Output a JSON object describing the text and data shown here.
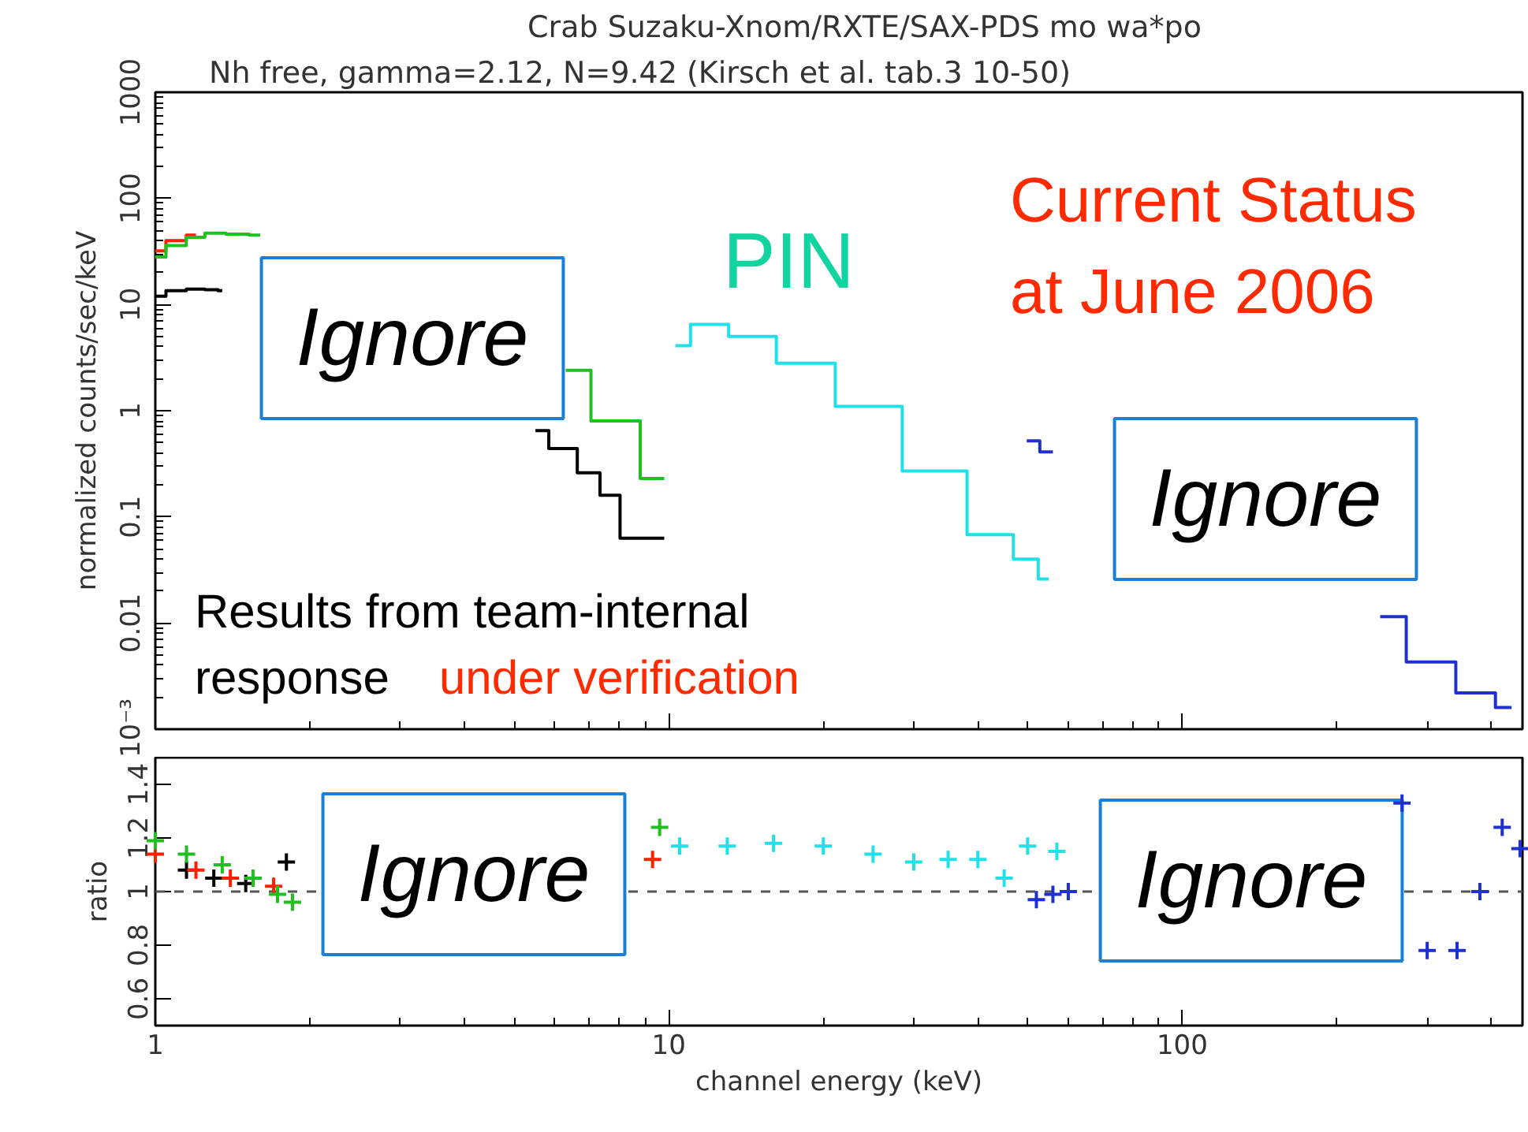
{
  "chart_data": [
    {
      "type": "step",
      "title": "Crab Suzaku-Xnom/RXTE/SAX-PDS mo wa*po",
      "subtitle": "Nh free,  gamma=2.12,  N=9.42  (Kirsch et al. tab.3 10-50)",
      "ylabel": "normalized counts/sec/keV",
      "log": "xy",
      "xlim": [
        1,
        460
      ],
      "xticks": [
        1,
        10,
        100
      ],
      "ylim": [
        0.001,
        1000
      ],
      "yticks": [
        {
          "value": 0.001,
          "label": "10⁻³"
        },
        0.01,
        0.1,
        1,
        10,
        100,
        1000
      ],
      "tick_labels": "y",
      "annotations": [
        "PIN",
        "Current Status",
        "at June 2006",
        "Results from team-internal",
        "response",
        "under verification",
        "Ignore",
        "Ignore"
      ],
      "series": [
        {
          "color": "#000000",
          "x": [
            1,
            1.1,
            1.2,
            1.3,
            1.35,
            null,
            5.5,
            6.2,
            7.1,
            7.6,
            8.5,
            9.8
          ],
          "values": [
            12,
            13.5,
            14,
            13.8,
            13.5,
            null,
            0.65,
            0.44,
            0.26,
            0.16,
            0.063,
            0.063
          ]
        },
        {
          "color": "#ff2000",
          "x": [
            1,
            1.1,
            1.2
          ],
          "values": [
            32,
            40,
            45
          ]
        },
        {
          "color": "#20c020",
          "x": [
            1,
            1.1,
            1.2,
            1.3,
            1.45,
            1.6,
            null,
            6.3,
            7.9,
            9.8
          ],
          "values": [
            28,
            36,
            43,
            47,
            46,
            45,
            null,
            2.4,
            0.8,
            0.23
          ]
        },
        {
          "color": "#20e0e8",
          "x": [
            10.3,
            11.8,
            14.5,
            18.1,
            24.6,
            33,
            44,
            50,
            55
          ],
          "values": [
            4.1,
            6.5,
            5,
            2.8,
            1.1,
            0.27,
            0.068,
            0.04,
            0.026
          ]
        },
        {
          "color": "#2030d0",
          "x": [
            49.8,
            56,
            null,
            243,
            307,
            379,
            438
          ],
          "values": [
            0.52,
            0.41,
            null,
            0.0115,
            0.0043,
            0.0022,
            0.0016
          ]
        }
      ]
    },
    {
      "type": "scatter",
      "marker": "cross",
      "xlabel": "channel energy (keV)",
      "ylabel": "ratio",
      "log": "x",
      "xlim": [
        1,
        460
      ],
      "xticks": [
        1,
        10,
        100
      ],
      "ylim": [
        0.5,
        1.5
      ],
      "yticks": [
        0.6,
        0.8,
        1,
        1.2,
        1.4
      ],
      "ref_lines": [
        {
          "axis": "y",
          "value": 1,
          "color": "#555555",
          "line_style": "dashed"
        }
      ],
      "annotations": [
        "Ignore",
        "Ignore"
      ],
      "series": [
        {
          "color": "#000000",
          "x": [
            1.15,
            1.3,
            1.5,
            1.8
          ],
          "values": [
            1.08,
            1.05,
            1.03,
            1.11
          ]
        },
        {
          "color": "#ff2000",
          "x": [
            1,
            1.2,
            1.4,
            1.7,
            9.3
          ],
          "values": [
            1.14,
            1.08,
            1.05,
            1.02,
            1.12
          ]
        },
        {
          "color": "#20c020",
          "x": [
            1,
            1.15,
            1.35,
            1.55,
            1.73,
            1.85,
            9.6
          ],
          "values": [
            1.19,
            1.14,
            1.1,
            1.05,
            0.99,
            0.96,
            1.24
          ]
        },
        {
          "color": "#20e0e8",
          "x": [
            10.5,
            13,
            16,
            20,
            25,
            30,
            35,
            40,
            45,
            50,
            57
          ],
          "values": [
            1.17,
            1.17,
            1.18,
            1.17,
            1.14,
            1.11,
            1.12,
            1.12,
            1.05,
            1.17,
            1.15
          ]
        },
        {
          "color": "#2030d0",
          "x": [
            52,
            56,
            60,
            268,
            300,
            343,
            380,
            420,
            455
          ],
          "values": [
            0.97,
            0.99,
            1.0,
            1.33,
            0.78,
            0.78,
            1.0,
            1.24,
            1.16
          ]
        }
      ]
    }
  ]
}
